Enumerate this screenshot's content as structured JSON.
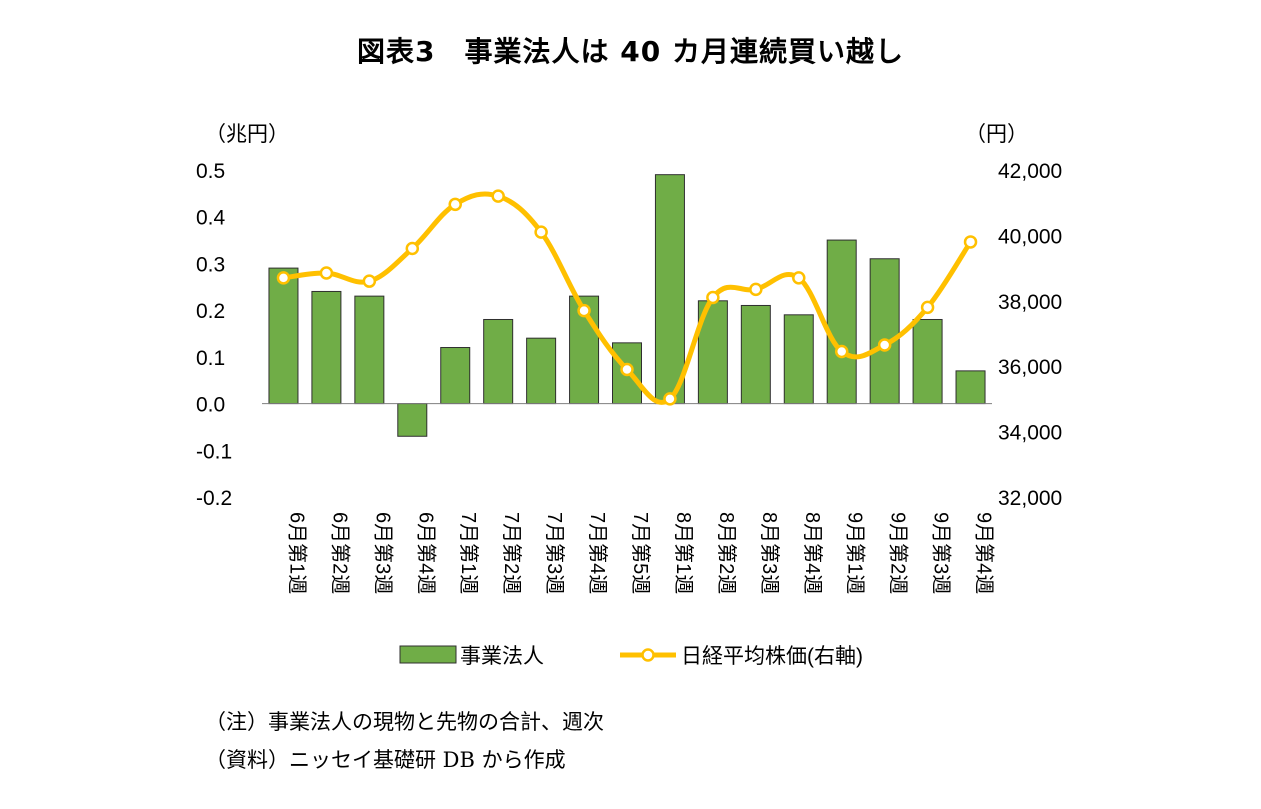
{
  "chart_data": {
    "type": "bar+line",
    "title": "図表3　事業法人は 40 カ月連続買い越し",
    "left_axis_unit": "（兆円）",
    "right_axis_unit": "（円）",
    "categories": [
      "6月第1週",
      "6月第2週",
      "6月第3週",
      "6月第4週",
      "7月第1週",
      "7月第2週",
      "7月第3週",
      "7月第4週",
      "7月第5週",
      "8月第1週",
      "8月第2週",
      "8月第3週",
      "8月第4週",
      "9月第1週",
      "9月第2週",
      "9月第3週",
      "9月第4週"
    ],
    "left_ylim": [
      -0.2,
      0.5
    ],
    "left_ticks": [
      "0.5",
      "0.4",
      "0.3",
      "0.2",
      "0.1",
      "0.0",
      "-0.1",
      "-0.2"
    ],
    "right_ylim": [
      32000,
      42000
    ],
    "right_ticks": [
      "42,000",
      "40,000",
      "38,000",
      "36,000",
      "34,000",
      "32,000"
    ],
    "series": [
      {
        "name": "事業法人",
        "type": "bar",
        "axis": "left",
        "color": "#70AD47",
        "values": [
          0.29,
          0.24,
          0.23,
          -0.07,
          0.12,
          0.18,
          0.14,
          0.23,
          0.13,
          0.49,
          0.22,
          0.21,
          0.19,
          0.35,
          0.31,
          0.18,
          0.07
        ]
      },
      {
        "name": "日経平均株価(右軸)",
        "type": "line",
        "axis": "right",
        "color": "#FFC000",
        "values": [
          38700,
          38850,
          38600,
          39600,
          40950,
          41200,
          40100,
          37700,
          35900,
          35000,
          38100,
          38350,
          38700,
          36450,
          36650,
          37800,
          39800
        ]
      }
    ],
    "grid": false,
    "legend_position": "bottom"
  },
  "notes": [
    "（注）事業法人の現物と先物の合計、週次",
    "（資料）ニッセイ基礎研 DB から作成"
  ]
}
